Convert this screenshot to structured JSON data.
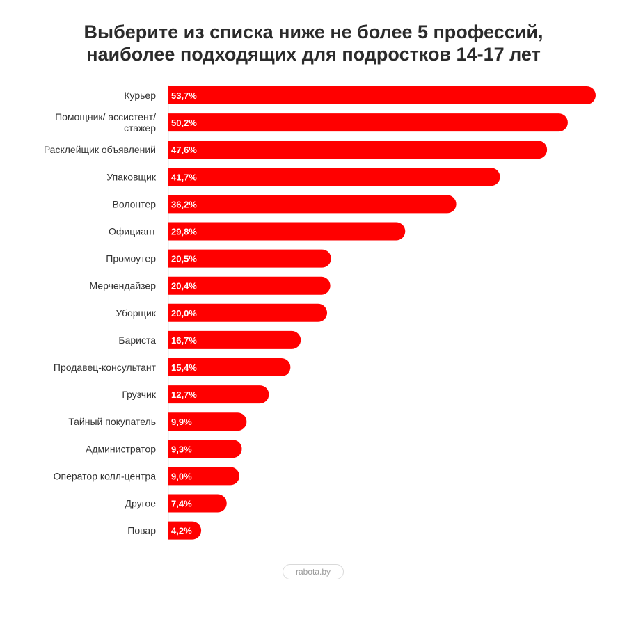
{
  "chart_data": {
    "type": "bar",
    "orientation": "horizontal",
    "title_lines": [
      "Выберите из списка ниже не более 5 профессий,",
      "наиболее подходящих для подростков 14-17 лет"
    ],
    "categories": [
      [
        "Курьер"
      ],
      [
        "Помощник/ ассистент/",
        "стажер"
      ],
      [
        "Расклейщик объявлений"
      ],
      [
        "Упаковщик"
      ],
      [
        "Волонтер"
      ],
      [
        "Официант"
      ],
      [
        "Промоутер"
      ],
      [
        "Мерчендайзер"
      ],
      [
        "Уборщик"
      ],
      [
        "Бариста"
      ],
      [
        "Продавец-консультант"
      ],
      [
        "Грузчик"
      ],
      [
        "Тайный покупатель"
      ],
      [
        "Администратор"
      ],
      [
        "Оператор колл-центра"
      ],
      [
        "Другое"
      ],
      [
        "Повар"
      ]
    ],
    "values": [
      53.7,
      50.2,
      47.6,
      41.7,
      36.2,
      29.8,
      20.5,
      20.4,
      20.0,
      16.7,
      15.4,
      12.7,
      9.9,
      9.3,
      9.0,
      7.4,
      4.2
    ],
    "value_labels": [
      "53,7%",
      "50,2%",
      "47,6%",
      "41,7%",
      "36,2%",
      "29,8%",
      "20,5%",
      "20,4%",
      "20,0%",
      "16,7%",
      "15,4%",
      "12,7%",
      "9,9%",
      "9,3%",
      "9,0%",
      "7,4%",
      "4,2%"
    ],
    "unit": "%",
    "bar_color": "#ff0000",
    "grid": false,
    "legend": "none"
  },
  "source": "rabota.by"
}
